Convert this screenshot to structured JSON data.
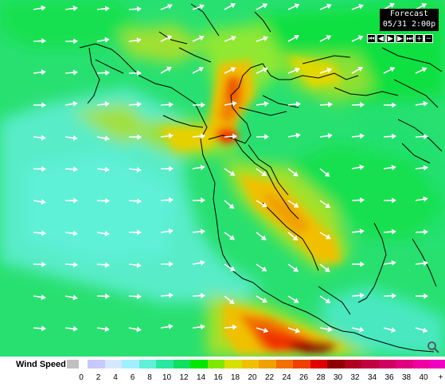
{
  "forecast": {
    "title": "Forecast",
    "datetime": "05/31  2:00p"
  },
  "controls": [
    {
      "name": "first-frame-button",
      "glyph": "⏮"
    },
    {
      "name": "previous-frame-button",
      "glyph": "◀"
    },
    {
      "name": "play-button",
      "glyph": "▶"
    },
    {
      "name": "next-frame-button",
      "glyph": "▶"
    },
    {
      "name": "last-frame-button",
      "glyph": "⏭"
    },
    {
      "name": "zoom-in-button",
      "glyph": "+"
    },
    {
      "name": "zoom-out-button",
      "glyph": "−"
    }
  ],
  "legend": {
    "title": "Wind Speed",
    "nodata_color": "#c0c0c0",
    "swatch_colors": [
      "#c8c8ff",
      "#d6e8ff",
      "#a0f0ff",
      "#60f0d8",
      "#28e8a0",
      "#10e060",
      "#00e800",
      "#80e800",
      "#d8e000",
      "#f0c000",
      "#f0a000",
      "#f07000",
      "#f04000",
      "#e00000",
      "#900000",
      "#b00020",
      "#c00040",
      "#d00060",
      "#e00080",
      "#f000a0",
      "#f000c0"
    ],
    "labels": [
      "0",
      "2",
      "4",
      "6",
      "8",
      "10",
      "12",
      "14",
      "16",
      "18",
      "20",
      "22",
      "24",
      "26",
      "28",
      "30",
      "32",
      "34",
      "36",
      "38",
      "40",
      "+"
    ]
  }
}
